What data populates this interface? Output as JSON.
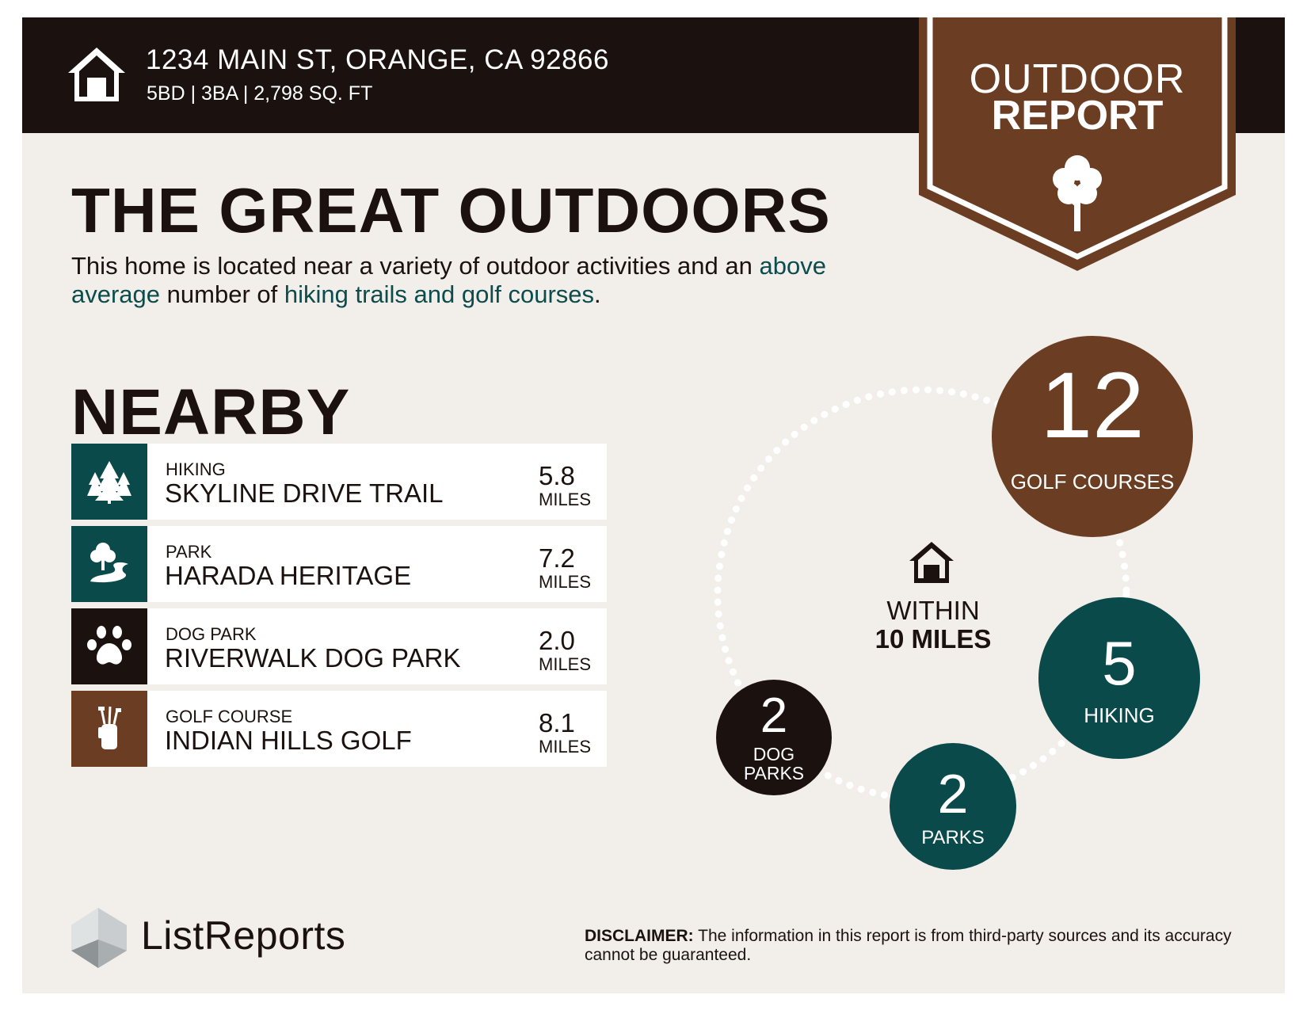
{
  "header": {
    "address": "1234 MAIN ST, ORANGE, CA 92866",
    "specs": "5BD | 3BA | 2,798 SQ. FT",
    "icon": "house-icon"
  },
  "badge": {
    "line1": "OUTDOOR",
    "line2": "REPORT",
    "icon": "tree-icon",
    "color": "#6b3d22"
  },
  "main": {
    "title": "THE GREAT OUTDOORS",
    "intro_part1": "This home is located near a variety of outdoor activities and an",
    "intro_highlight1": "above average",
    "intro_part2": "number of",
    "intro_highlight2": "hiking trails and golf courses",
    "intro_part3": "."
  },
  "nearby": {
    "title": "NEARBY",
    "items": [
      {
        "category": "HIKING",
        "name": "SKYLINE DRIVE TRAIL",
        "distance": "5.8",
        "unit": "MILES",
        "icon": "trees-icon",
        "color": "#0a4a4b"
      },
      {
        "category": "PARK",
        "name": "HARADA HERITAGE",
        "distance": "7.2",
        "unit": "MILES",
        "icon": "park-icon",
        "color": "#0a4a4b"
      },
      {
        "category": "DOG PARK",
        "name": "RIVERWALK DOG PARK",
        "distance": "2.0",
        "unit": "MILES",
        "icon": "paw-icon",
        "color": "#1b1210"
      },
      {
        "category": "GOLF COURSE",
        "name": "INDIAN HILLS GOLF",
        "distance": "8.1",
        "unit": "MILES",
        "icon": "golf-bag-icon",
        "color": "#6b3d22"
      }
    ]
  },
  "radius": {
    "line1": "WITHIN",
    "line2": "10 MILES",
    "counts": {
      "golf": {
        "num": "12",
        "label": "GOLF COURSES"
      },
      "hiking": {
        "num": "5",
        "label": "HIKING"
      },
      "parks": {
        "num": "2",
        "label": "PARKS"
      },
      "dog": {
        "num": "2",
        "label_line1": "DOG",
        "label_line2": "PARKS"
      }
    }
  },
  "footer": {
    "logo_text": "ListReports",
    "disclaimer_label": "DISCLAIMER:",
    "disclaimer_text": "The information in this report is from third-party sources and its accuracy cannot be guaranteed."
  }
}
